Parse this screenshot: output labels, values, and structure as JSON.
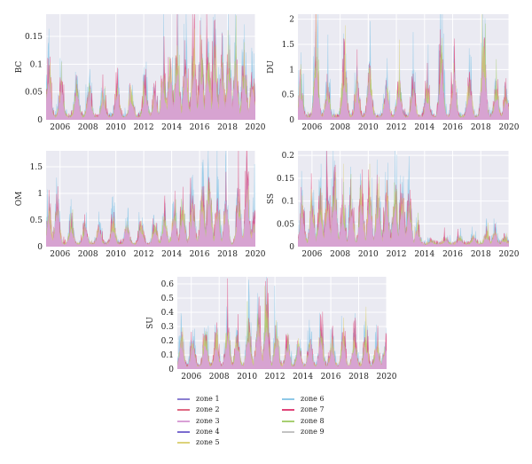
{
  "chart_data": [
    {
      "type": "area",
      "ylabel": "BC",
      "xlim": [
        2005,
        2020
      ],
      "ylim": [
        0,
        0.19
      ],
      "xticks": [
        "2006",
        "2008",
        "2010",
        "2012",
        "2014",
        "2016",
        "2018",
        "2020"
      ],
      "yticks": [
        "0",
        "0.05",
        "0.1",
        "0.15"
      ],
      "grid": true,
      "peaks": [
        {
          "x": 2005.2,
          "y": 0.135
        },
        {
          "x": 2006.1,
          "y": 0.095
        },
        {
          "x": 2007.2,
          "y": 0.09
        },
        {
          "x": 2008.1,
          "y": 0.08
        },
        {
          "x": 2009.1,
          "y": 0.06
        },
        {
          "x": 2010.1,
          "y": 0.075
        },
        {
          "x": 2011.1,
          "y": 0.065
        },
        {
          "x": 2012.1,
          "y": 0.085
        },
        {
          "x": 2012.8,
          "y": 0.055
        },
        {
          "x": 2013.4,
          "y": 0.11
        },
        {
          "x": 2013.9,
          "y": 0.14
        },
        {
          "x": 2014.4,
          "y": 0.17
        },
        {
          "x": 2015.0,
          "y": 0.15
        },
        {
          "x": 2015.6,
          "y": 0.165
        },
        {
          "x": 2016.1,
          "y": 0.17
        },
        {
          "x": 2016.6,
          "y": 0.155
        },
        {
          "x": 2017.1,
          "y": 0.165
        },
        {
          "x": 2017.6,
          "y": 0.14
        },
        {
          "x": 2018.1,
          "y": 0.17
        },
        {
          "x": 2018.6,
          "y": 0.16
        },
        {
          "x": 2019.2,
          "y": 0.15
        },
        {
          "x": 2019.8,
          "y": 0.11
        }
      ]
    },
    {
      "type": "area",
      "ylabel": "DU",
      "xlim": [
        2005,
        2020
      ],
      "ylim": [
        0,
        2.1
      ],
      "xticks": [
        "2006",
        "2008",
        "2010",
        "2012",
        "2014",
        "2016",
        "2018",
        "2020"
      ],
      "yticks": [
        "0",
        "0.5",
        "1",
        "1.5",
        "2"
      ],
      "grid": true,
      "peaks": [
        {
          "x": 2005.2,
          "y": 1.0
        },
        {
          "x": 2006.3,
          "y": 1.95
        },
        {
          "x": 2007.1,
          "y": 0.8
        },
        {
          "x": 2008.3,
          "y": 1.5
        },
        {
          "x": 2009.2,
          "y": 0.9
        },
        {
          "x": 2010.1,
          "y": 1.3
        },
        {
          "x": 2011.3,
          "y": 0.95
        },
        {
          "x": 2012.2,
          "y": 1.0
        },
        {
          "x": 2013.2,
          "y": 0.9
        },
        {
          "x": 2014.2,
          "y": 0.8
        },
        {
          "x": 2015.2,
          "y": 1.9
        },
        {
          "x": 2016.1,
          "y": 1.3
        },
        {
          "x": 2017.2,
          "y": 1.0
        },
        {
          "x": 2018.2,
          "y": 2.0
        },
        {
          "x": 2019.1,
          "y": 0.9
        },
        {
          "x": 2019.8,
          "y": 0.7
        }
      ]
    },
    {
      "type": "area",
      "ylabel": "OM",
      "xlim": [
        2005,
        2020
      ],
      "ylim": [
        0,
        1.8
      ],
      "xticks": [
        "2006",
        "2008",
        "2010",
        "2012",
        "2014",
        "2016",
        "2018",
        "2020"
      ],
      "yticks": [
        "0",
        "0.5",
        "1",
        "1.5"
      ],
      "grid": true,
      "peaks": [
        {
          "x": 2005.2,
          "y": 0.9
        },
        {
          "x": 2005.8,
          "y": 1.15
        },
        {
          "x": 2006.8,
          "y": 0.6
        },
        {
          "x": 2007.8,
          "y": 0.55
        },
        {
          "x": 2008.8,
          "y": 0.5
        },
        {
          "x": 2009.8,
          "y": 0.65
        },
        {
          "x": 2010.8,
          "y": 0.55
        },
        {
          "x": 2011.8,
          "y": 0.6
        },
        {
          "x": 2012.8,
          "y": 0.55
        },
        {
          "x": 2013.5,
          "y": 0.7
        },
        {
          "x": 2014.2,
          "y": 0.95
        },
        {
          "x": 2014.8,
          "y": 1.0
        },
        {
          "x": 2015.5,
          "y": 1.25
        },
        {
          "x": 2016.2,
          "y": 1.45
        },
        {
          "x": 2016.7,
          "y": 1.75
        },
        {
          "x": 2017.3,
          "y": 1.1
        },
        {
          "x": 2017.9,
          "y": 1.2
        },
        {
          "x": 2018.8,
          "y": 1.3
        },
        {
          "x": 2019.4,
          "y": 1.65
        },
        {
          "x": 2019.9,
          "y": 0.6
        }
      ]
    },
    {
      "type": "area",
      "ylabel": "SS",
      "xlim": [
        2005,
        2020
      ],
      "ylim": [
        0,
        0.21
      ],
      "xticks": [
        "2006",
        "2008",
        "2010",
        "2012",
        "2014",
        "2016",
        "2018",
        "2020"
      ],
      "yticks": [
        "0",
        "0.05",
        "0.1",
        "0.15",
        "0.2"
      ],
      "grid": true,
      "peaks": [
        {
          "x": 2005.3,
          "y": 0.12
        },
        {
          "x": 2006.0,
          "y": 0.13
        },
        {
          "x": 2006.6,
          "y": 0.14
        },
        {
          "x": 2007.1,
          "y": 0.15
        },
        {
          "x": 2007.6,
          "y": 0.2
        },
        {
          "x": 2008.2,
          "y": 0.13
        },
        {
          "x": 2008.8,
          "y": 0.14
        },
        {
          "x": 2009.5,
          "y": 0.16
        },
        {
          "x": 2010.1,
          "y": 0.17
        },
        {
          "x": 2010.7,
          "y": 0.16
        },
        {
          "x": 2011.3,
          "y": 0.15
        },
        {
          "x": 2011.9,
          "y": 0.17
        },
        {
          "x": 2012.4,
          "y": 0.16
        },
        {
          "x": 2012.9,
          "y": 0.14
        },
        {
          "x": 2013.5,
          "y": 0.05
        },
        {
          "x": 2014.5,
          "y": 0.01
        },
        {
          "x": 2015.5,
          "y": 0.015
        },
        {
          "x": 2016.5,
          "y": 0.02
        },
        {
          "x": 2017.5,
          "y": 0.025
        },
        {
          "x": 2018.4,
          "y": 0.035
        },
        {
          "x": 2019.0,
          "y": 0.04
        },
        {
          "x": 2019.7,
          "y": 0.015
        }
      ]
    },
    {
      "type": "area",
      "ylabel": "SU",
      "xlim": [
        2005,
        2020
      ],
      "ylim": [
        0,
        0.65
      ],
      "xticks": [
        "2006",
        "2008",
        "2010",
        "2012",
        "2014",
        "2016",
        "2018",
        "2020"
      ],
      "yticks": [
        "0",
        "0.1",
        "0.2",
        "0.3",
        "0.4",
        "0.5",
        "0.6"
      ],
      "grid": true,
      "peaks": [
        {
          "x": 2005.3,
          "y": 0.3
        },
        {
          "x": 2006.1,
          "y": 0.28
        },
        {
          "x": 2007.0,
          "y": 0.35
        },
        {
          "x": 2007.8,
          "y": 0.3
        },
        {
          "x": 2008.6,
          "y": 0.38
        },
        {
          "x": 2009.3,
          "y": 0.32
        },
        {
          "x": 2010.1,
          "y": 0.42
        },
        {
          "x": 2010.8,
          "y": 0.55
        },
        {
          "x": 2011.4,
          "y": 0.62
        },
        {
          "x": 2012.1,
          "y": 0.35
        },
        {
          "x": 2012.9,
          "y": 0.28
        },
        {
          "x": 2013.7,
          "y": 0.25
        },
        {
          "x": 2014.5,
          "y": 0.28
        },
        {
          "x": 2015.3,
          "y": 0.32
        },
        {
          "x": 2016.1,
          "y": 0.25
        },
        {
          "x": 2016.9,
          "y": 0.28
        },
        {
          "x": 2017.7,
          "y": 0.3
        },
        {
          "x": 2018.5,
          "y": 0.3
        },
        {
          "x": 2019.3,
          "y": 0.25
        },
        {
          "x": 2019.9,
          "y": 0.2
        }
      ]
    }
  ],
  "legend": {
    "items": [
      {
        "label": "zone 1",
        "color": "#8a7fd1"
      },
      {
        "label": "zone 2",
        "color": "#e06a84"
      },
      {
        "label": "zone 3",
        "color": "#d9a0d6"
      },
      {
        "label": "zone 4",
        "color": "#7b6ccf"
      },
      {
        "label": "zone 5",
        "color": "#dcd27a"
      },
      {
        "label": "zone 6",
        "color": "#8ec9e8"
      },
      {
        "label": "zone 7",
        "color": "#e0457a"
      },
      {
        "label": "zone 8",
        "color": "#a8cf72"
      },
      {
        "label": "zone 9",
        "color": "#c3c3c3"
      }
    ]
  },
  "style": {
    "plot_bg": "#eaeaf2",
    "grid_color": "#ffffff",
    "fill_main": "#d9a0d6",
    "fill_accents": [
      "#8ec9e8",
      "#e0457a",
      "#dcd27a",
      "#a8cf72",
      "#7b6ccf"
    ]
  }
}
